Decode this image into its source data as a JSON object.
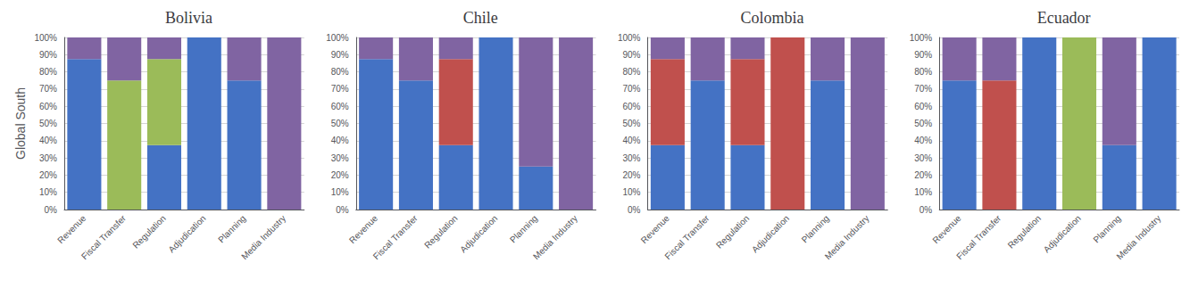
{
  "chart_data": [
    {
      "type": "bar",
      "title": "Bolivia",
      "ylabel": "Global South",
      "categories": [
        "Revenue",
        "Fiscal Transfer",
        "Regulation",
        "Adjudication",
        "Planning",
        "Media Industry"
      ],
      "series": [
        {
          "color": "#4472C4",
          "values": [
            0.875,
            0.0,
            0.375,
            1.0,
            0.75,
            0.0
          ]
        },
        {
          "color": "#C0504D",
          "values": [
            0.0,
            0.0,
            0.0,
            0.0,
            0.0,
            0.0
          ]
        },
        {
          "color": "#9BBB59",
          "values": [
            0.0,
            0.75,
            0.5,
            0.0,
            0.0,
            0.0
          ]
        },
        {
          "color": "#8064A2",
          "values": [
            0.125,
            0.25,
            0.125,
            0.0,
            0.25,
            1.0
          ]
        }
      ],
      "stacked": true,
      "grid": true,
      "ylim": [
        0.0,
        1.0
      ],
      "yticks": [
        {
          "value": 0.0,
          "label": "0%"
        },
        {
          "value": 0.1,
          "label": "10%"
        },
        {
          "value": 0.2,
          "label": "20%"
        },
        {
          "value": 0.3,
          "label": "30%"
        },
        {
          "value": 0.4,
          "label": "40%"
        },
        {
          "value": 0.5,
          "label": "50%"
        },
        {
          "value": 0.6,
          "label": "60%"
        },
        {
          "value": 0.7,
          "label": "70%"
        },
        {
          "value": 0.8,
          "label": "80%"
        },
        {
          "value": 0.9,
          "label": "90%"
        },
        {
          "value": 1.0,
          "label": "100%"
        }
      ]
    },
    {
      "type": "bar",
      "title": "Chile",
      "categories": [
        "Revenue",
        "Fiscal Transfer",
        "Regulation",
        "Adjudication",
        "Planning",
        "Media Industry"
      ],
      "series": [
        {
          "color": "#4472C4",
          "values": [
            0.875,
            0.75,
            0.375,
            1.0,
            0.25,
            0.0
          ]
        },
        {
          "color": "#C0504D",
          "values": [
            0.0,
            0.0,
            0.5,
            0.0,
            0.0,
            0.0
          ]
        },
        {
          "color": "#9BBB59",
          "values": [
            0.0,
            0.0,
            0.0,
            0.0,
            0.0,
            0.0
          ]
        },
        {
          "color": "#8064A2",
          "values": [
            0.125,
            0.25,
            0.125,
            0.0,
            0.75,
            1.0
          ]
        }
      ],
      "stacked": true,
      "grid": true,
      "ylim": [
        0.0,
        1.0
      ],
      "yticks": [
        {
          "value": 0.0,
          "label": "0%"
        },
        {
          "value": 0.1,
          "label": "10%"
        },
        {
          "value": 0.2,
          "label": "20%"
        },
        {
          "value": 0.3,
          "label": "30%"
        },
        {
          "value": 0.4,
          "label": "40%"
        },
        {
          "value": 0.5,
          "label": "50%"
        },
        {
          "value": 0.6,
          "label": "60%"
        },
        {
          "value": 0.7,
          "label": "70%"
        },
        {
          "value": 0.8,
          "label": "80%"
        },
        {
          "value": 0.9,
          "label": "90%"
        },
        {
          "value": 1.0,
          "label": "100%"
        }
      ]
    },
    {
      "type": "bar",
      "title": "Colombia",
      "categories": [
        "Revenue",
        "Fiscal Transfer",
        "Regulation",
        "Adjudication",
        "Planning",
        "Media Industry"
      ],
      "series": [
        {
          "color": "#4472C4",
          "values": [
            0.375,
            0.75,
            0.375,
            0.0,
            0.75,
            0.0
          ]
        },
        {
          "color": "#C0504D",
          "values": [
            0.5,
            0.0,
            0.5,
            1.0,
            0.0,
            0.0
          ]
        },
        {
          "color": "#9BBB59",
          "values": [
            0.0,
            0.0,
            0.0,
            0.0,
            0.0,
            0.0
          ]
        },
        {
          "color": "#8064A2",
          "values": [
            0.125,
            0.25,
            0.125,
            0.0,
            0.25,
            1.0
          ]
        }
      ],
      "stacked": true,
      "grid": true,
      "ylim": [
        0.0,
        1.0
      ],
      "yticks": [
        {
          "value": 0.0,
          "label": "0%"
        },
        {
          "value": 0.1,
          "label": "10%"
        },
        {
          "value": 0.2,
          "label": "20%"
        },
        {
          "value": 0.3,
          "label": "30%"
        },
        {
          "value": 0.4,
          "label": "40%"
        },
        {
          "value": 0.5,
          "label": "50%"
        },
        {
          "value": 0.6,
          "label": "60%"
        },
        {
          "value": 0.7,
          "label": "70%"
        },
        {
          "value": 0.8,
          "label": "80%"
        },
        {
          "value": 0.9,
          "label": "90%"
        },
        {
          "value": 1.0,
          "label": "100%"
        }
      ]
    },
    {
      "type": "bar",
      "title": "Ecuador",
      "categories": [
        "Revenue",
        "Fiscal Transfer",
        "Regulation",
        "Adjudication",
        "Planning",
        "Media Industry"
      ],
      "series": [
        {
          "color": "#4472C4",
          "values": [
            0.75,
            0.0,
            1.0,
            0.0,
            0.375,
            1.0
          ]
        },
        {
          "color": "#C0504D",
          "values": [
            0.0,
            0.75,
            0.0,
            0.0,
            0.0,
            0.0
          ]
        },
        {
          "color": "#9BBB59",
          "values": [
            0.0,
            0.0,
            0.0,
            1.0,
            0.0,
            0.0
          ]
        },
        {
          "color": "#8064A2",
          "values": [
            0.25,
            0.25,
            0.0,
            0.0,
            0.625,
            0.0
          ]
        }
      ],
      "stacked": true,
      "grid": true,
      "ylim": [
        0.0,
        1.0
      ],
      "yticks": [
        {
          "value": 0.0,
          "label": "0%"
        },
        {
          "value": 0.1,
          "label": "10%"
        },
        {
          "value": 0.2,
          "label": "20%"
        },
        {
          "value": 0.3,
          "label": "30%"
        },
        {
          "value": 0.4,
          "label": "40%"
        },
        {
          "value": 0.5,
          "label": "50%"
        },
        {
          "value": 0.6,
          "label": "60%"
        },
        {
          "value": 0.7,
          "label": "70%"
        },
        {
          "value": 0.8,
          "label": "80%"
        },
        {
          "value": 0.9,
          "label": "90%"
        },
        {
          "value": 1.0,
          "label": "100%"
        }
      ]
    }
  ]
}
